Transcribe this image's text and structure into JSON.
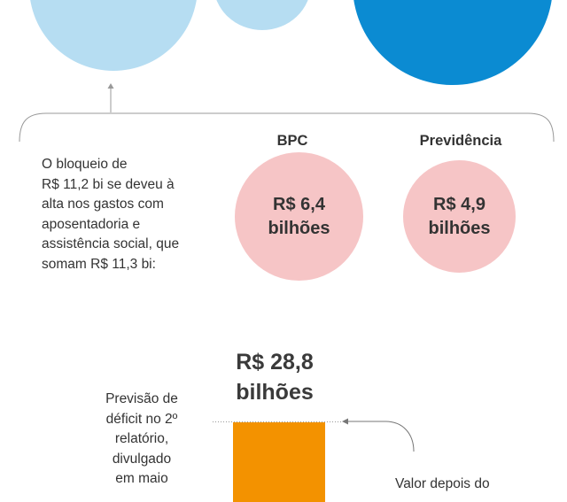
{
  "intro": {
    "lines": [
      "O bloqueio de",
      "R$ 11,2 bi se deveu à",
      "alta nos gastos com",
      "aposentadoria e",
      "assistência social, que",
      "somam R$ 11,3 bi:"
    ]
  },
  "components": [
    {
      "label": "BPC",
      "value_line1": "R$ 6,4",
      "value_line2": "bilhões"
    },
    {
      "label": "Previdência",
      "value_line1": "R$ 4,9",
      "value_line2": "bilhões"
    }
  ],
  "deficit": {
    "value_line1": "R$ 28,8",
    "value_line2": "bilhões",
    "value_numeric": 28.8,
    "note_lines": [
      "Previsão de",
      "déficit no 2º",
      "relatório,",
      "divulgado",
      "em maio"
    ]
  },
  "after_note": "Valor depois do",
  "colors": {
    "light_blue": "#b6ddf2",
    "dark_blue": "#0b8bd2",
    "pink": "#f6c5c6",
    "orange": "#f39200",
    "line_gray": "#999999"
  }
}
